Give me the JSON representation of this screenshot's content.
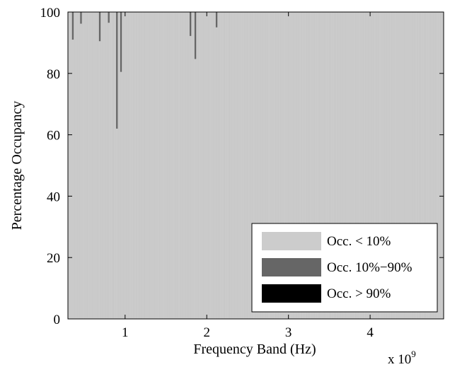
{
  "chart_data": {
    "type": "bar",
    "title": "",
    "xlabel": "Frequency Band (Hz)",
    "ylabel": "Percentage Occupancy",
    "x_exponent_label": "x 10",
    "x_exponent_power": "9",
    "xlim": [
      0.3,
      4.9
    ],
    "ylim": [
      0,
      100
    ],
    "xticks": [
      1,
      2,
      3,
      4
    ],
    "xtick_labels": [
      "1",
      "2",
      "3",
      "4"
    ],
    "yticks": [
      0,
      20,
      40,
      60,
      80,
      100
    ],
    "ytick_labels": [
      "0",
      "20",
      "40",
      "60",
      "80",
      "100"
    ],
    "grid": false,
    "stacked": true,
    "bin_width_ghz": 0.02,
    "legend_position": "bottom-right",
    "series": [
      {
        "name": "Occ. < 10%",
        "color": "#cccccc"
      },
      {
        "name": "Occ. 10%−90%",
        "color": "#666666"
      },
      {
        "name": "Occ. > 90%",
        "color": "#000000"
      }
    ],
    "occupancy_10_90_bands": [
      {
        "x": 0.36,
        "value": 9.0
      },
      {
        "x": 0.46,
        "value": 3.8
      },
      {
        "x": 0.69,
        "value": 9.5
      },
      {
        "x": 0.8,
        "value": 3.5
      },
      {
        "x": 0.9,
        "value": 38.0
      },
      {
        "x": 0.95,
        "value": 19.5
      },
      {
        "x": 1.8,
        "value": 7.8
      },
      {
        "x": 1.86,
        "value": 15.3
      },
      {
        "x": 2.12,
        "value": 5.0
      }
    ]
  }
}
